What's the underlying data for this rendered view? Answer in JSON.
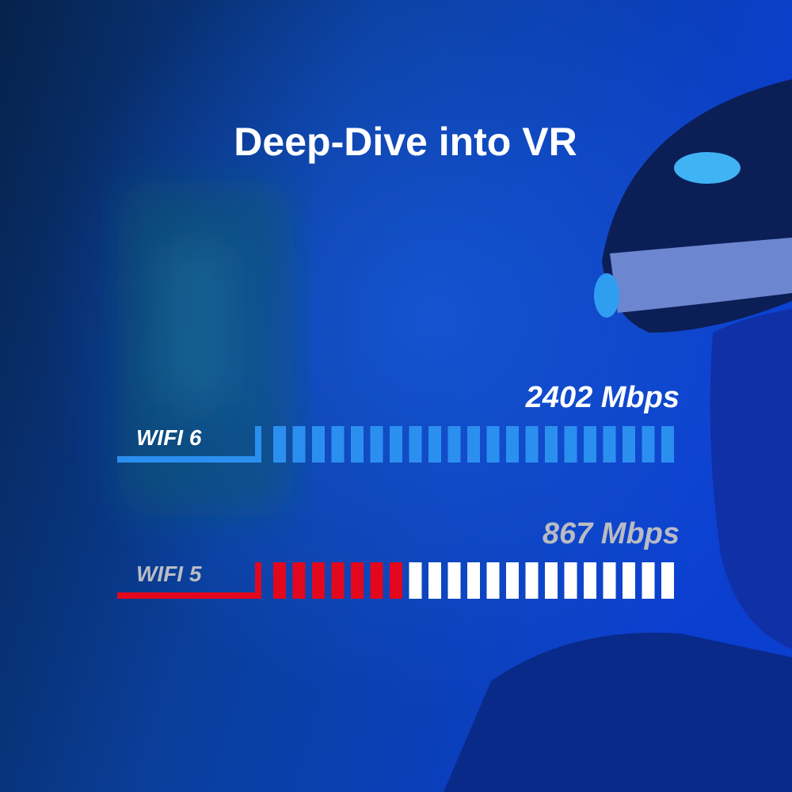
{
  "header": {
    "title": "Deep-Dive into VR"
  },
  "rows": [
    {
      "label": "WIFI 6",
      "speed": "2402 Mbps"
    },
    {
      "label": "WIFI 5",
      "speed": "867 Mbps"
    }
  ]
}
